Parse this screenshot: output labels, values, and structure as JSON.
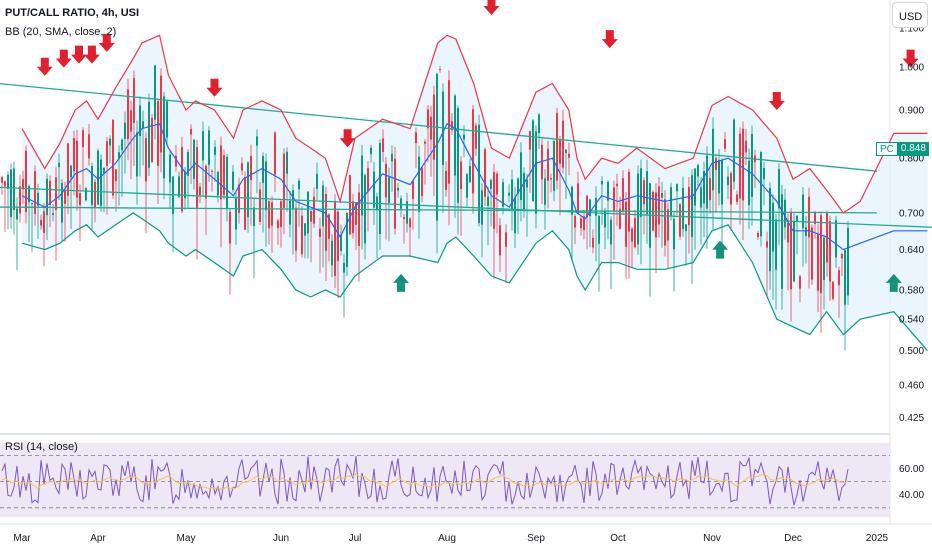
{
  "header": {
    "title": "PUT/CALL RATIO, 4h, USI",
    "indicator": "BB (20, SMA, close, 2)",
    "rsi_label": "RSI (14, close)"
  },
  "currency_button": "USD",
  "price_tag": {
    "symbol": "PC",
    "value": "0.848"
  },
  "colors": {
    "up": "#089981",
    "down": "#f23645",
    "upper_band": "#f23645",
    "basis": "#2962ff",
    "lower_band": "#089981",
    "band_fill": "#e3f2fd",
    "trendline": "#22ab94",
    "rsi": "#7e57c2",
    "rsi_ma": "#f7c548",
    "rsi_bg": "#ede7f6",
    "arrow_down": "#e0202e",
    "arrow_up": "#17917b"
  },
  "chart_data": [
    {
      "type": "line",
      "name": "main",
      "x_labels": [
        "Mar",
        "Apr",
        "May",
        "Jun",
        "Jul",
        "Aug",
        "Sep",
        "Oct",
        "Nov",
        "Dec",
        "2025"
      ],
      "y_ticks": [
        "1.100",
        "1.000",
        "0.900",
        "0.800",
        "0.700",
        "0.640",
        "0.580",
        "0.540",
        "0.500",
        "0.460",
        "0.425"
      ],
      "ylim": [
        0.41,
        1.16
      ],
      "scale": "log",
      "series": [
        {
          "name": "upper",
          "x": [
            0,
            0.3,
            0.5,
            0.7,
            0.85,
            1,
            1.2,
            1.4,
            1.5,
            1.7,
            1.8,
            2,
            2.1,
            2.3,
            2.5,
            2.6,
            2.8,
            3,
            3.2,
            3.4,
            3.6,
            3.8,
            4,
            4.3,
            4.6,
            4.9,
            5,
            5.1,
            5.3,
            5.5,
            5.7,
            6,
            6.2,
            6.4,
            6.5,
            6.6,
            6.8,
            7,
            7.2,
            7.5,
            7.8,
            8,
            8.2,
            8.5,
            8.8,
            9,
            9.2,
            9.4,
            9.6,
            9.8,
            10.2,
            10.6
          ],
          "y": [
            0.86,
            0.78,
            0.83,
            0.9,
            0.92,
            0.88,
            0.95,
            1.02,
            1.06,
            1.08,
            0.98,
            0.9,
            0.92,
            0.9,
            0.84,
            0.9,
            0.92,
            0.9,
            0.84,
            0.82,
            0.8,
            0.72,
            0.84,
            0.88,
            0.86,
            1.06,
            1.08,
            1.07,
            0.96,
            0.82,
            0.8,
            0.94,
            0.96,
            0.9,
            0.8,
            0.76,
            0.8,
            0.79,
            0.82,
            0.78,
            0.8,
            0.91,
            0.93,
            0.9,
            0.84,
            0.76,
            0.78,
            0.74,
            0.7,
            0.72,
            0.85,
            0.85
          ]
        },
        {
          "name": "basis",
          "x": [
            0,
            0.3,
            0.5,
            0.7,
            0.85,
            1,
            1.2,
            1.4,
            1.5,
            1.7,
            1.8,
            2,
            2.1,
            2.3,
            2.5,
            2.6,
            2.8,
            3,
            3.2,
            3.4,
            3.6,
            3.8,
            4,
            4.3,
            4.6,
            4.9,
            5,
            5.1,
            5.3,
            5.5,
            5.7,
            6,
            6.2,
            6.4,
            6.5,
            6.6,
            6.8,
            7,
            7.2,
            7.5,
            7.8,
            8,
            8.2,
            8.5,
            8.8,
            9,
            9.2,
            9.4,
            9.6,
            9.8,
            10.2,
            10.6
          ],
          "y": [
            0.73,
            0.71,
            0.73,
            0.77,
            0.78,
            0.76,
            0.79,
            0.84,
            0.86,
            0.87,
            0.82,
            0.77,
            0.79,
            0.76,
            0.73,
            0.76,
            0.78,
            0.76,
            0.72,
            0.71,
            0.7,
            0.66,
            0.71,
            0.77,
            0.75,
            0.83,
            0.87,
            0.86,
            0.79,
            0.73,
            0.71,
            0.79,
            0.8,
            0.74,
            0.7,
            0.69,
            0.73,
            0.72,
            0.73,
            0.72,
            0.73,
            0.79,
            0.8,
            0.77,
            0.72,
            0.67,
            0.67,
            0.66,
            0.64,
            0.65,
            0.67,
            0.67
          ]
        },
        {
          "name": "lower",
          "x": [
            0,
            0.3,
            0.5,
            0.7,
            0.85,
            1,
            1.2,
            1.4,
            1.5,
            1.7,
            1.8,
            2,
            2.1,
            2.3,
            2.5,
            2.6,
            2.8,
            3,
            3.2,
            3.4,
            3.6,
            3.8,
            4,
            4.3,
            4.6,
            4.9,
            5,
            5.1,
            5.3,
            5.5,
            5.7,
            6,
            6.2,
            6.4,
            6.5,
            6.6,
            6.8,
            7,
            7.2,
            7.5,
            7.8,
            8,
            8.2,
            8.5,
            8.8,
            9,
            9.2,
            9.4,
            9.6,
            9.8,
            10.2,
            10.6
          ],
          "y": [
            0.65,
            0.64,
            0.65,
            0.67,
            0.68,
            0.66,
            0.68,
            0.7,
            0.69,
            0.67,
            0.65,
            0.63,
            0.64,
            0.62,
            0.6,
            0.63,
            0.64,
            0.61,
            0.58,
            0.57,
            0.58,
            0.57,
            0.6,
            0.63,
            0.63,
            0.62,
            0.65,
            0.66,
            0.63,
            0.6,
            0.59,
            0.65,
            0.67,
            0.64,
            0.6,
            0.58,
            0.62,
            0.62,
            0.61,
            0.61,
            0.62,
            0.67,
            0.68,
            0.62,
            0.54,
            0.53,
            0.52,
            0.55,
            0.52,
            0.54,
            0.55,
            0.5
          ]
        }
      ],
      "trendlines": [
        {
          "x": [
            -0.3,
            10.0
          ],
          "y": [
            0.96,
            0.775
          ]
        },
        {
          "x": [
            -0.3,
            10.8
          ],
          "y": [
            0.745,
            0.675
          ]
        },
        {
          "x": [
            -0.3,
            10.0
          ],
          "y": [
            0.71,
            0.7
          ]
        }
      ],
      "down_arrows": [
        {
          "x": 0.3,
          "y": 1.0
        },
        {
          "x": 0.55,
          "y": 1.02
        },
        {
          "x": 0.75,
          "y": 1.03
        },
        {
          "x": 0.92,
          "y": 1.03
        },
        {
          "x": 1.1,
          "y": 1.06
        },
        {
          "x": 2.3,
          "y": 0.95
        },
        {
          "x": 3.9,
          "y": 0.84
        },
        {
          "x": 5.5,
          "y": 1.16
        },
        {
          "x": 6.9,
          "y": 1.07
        },
        {
          "x": 8.8,
          "y": 0.92
        },
        {
          "x": 10.4,
          "y": 1.02
        }
      ],
      "up_arrows": [
        {
          "x": 4.5,
          "y": 0.59
        },
        {
          "x": 8.1,
          "y": 0.64
        },
        {
          "x": 10.2,
          "y": 0.59
        }
      ]
    },
    {
      "type": "line",
      "name": "rsi",
      "y_ticks": [
        "60.00",
        "40.00"
      ],
      "ylim": [
        23,
        84
      ],
      "series": [
        {
          "name": "RSI"
        },
        {
          "name": "RSI MA"
        }
      ]
    }
  ]
}
